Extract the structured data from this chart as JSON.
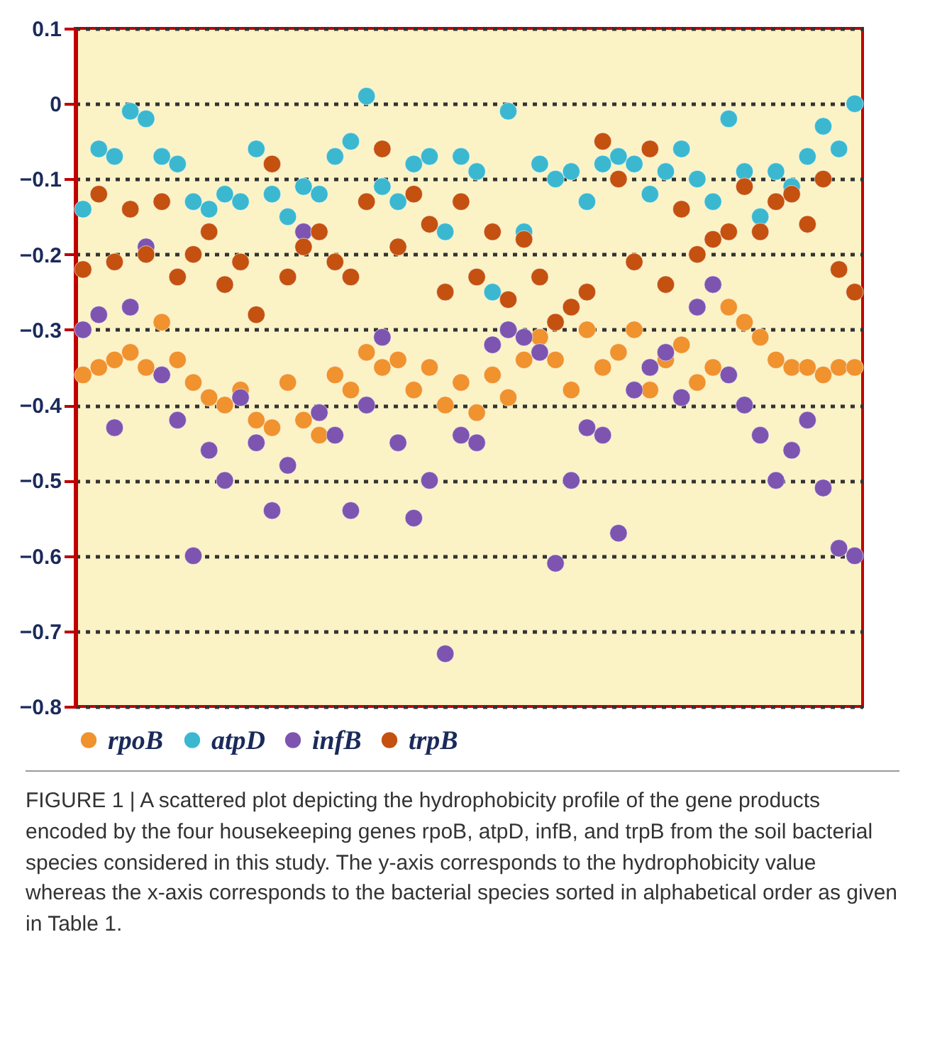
{
  "chart_data": {
    "type": "scatter",
    "categories": [
      null,
      null,
      null,
      null,
      null,
      null,
      null,
      null,
      null,
      null,
      null,
      null,
      null,
      null,
      null,
      null,
      null,
      null,
      null,
      null,
      null,
      null,
      null,
      null,
      null,
      null,
      null,
      null,
      null,
      null,
      null,
      null,
      null,
      null,
      null,
      null,
      null,
      null,
      null,
      null,
      null,
      null,
      null,
      null,
      null,
      null,
      null,
      null,
      null,
      null
    ],
    "series": [
      {
        "name": "rpoB",
        "color": "#f0922e",
        "values": [
          -0.36,
          -0.35,
          -0.34,
          -0.33,
          -0.35,
          -0.29,
          -0.34,
          -0.37,
          -0.39,
          -0.4,
          -0.38,
          -0.42,
          -0.43,
          -0.37,
          -0.42,
          -0.44,
          -0.36,
          -0.38,
          -0.33,
          -0.35,
          -0.34,
          -0.38,
          -0.35,
          -0.4,
          -0.37,
          -0.41,
          -0.36,
          -0.39,
          -0.34,
          -0.31,
          -0.34,
          -0.38,
          -0.3,
          -0.35,
          -0.33,
          -0.3,
          -0.38,
          -0.34,
          -0.32,
          -0.37,
          -0.35,
          -0.27,
          -0.29,
          -0.31,
          -0.34,
          -0.35,
          -0.35,
          -0.36,
          -0.35,
          -0.35
        ]
      },
      {
        "name": "atpD",
        "color": "#3bb8d0",
        "values": [
          -0.14,
          -0.06,
          -0.07,
          -0.01,
          -0.02,
          -0.07,
          -0.08,
          -0.13,
          -0.14,
          -0.12,
          -0.13,
          -0.06,
          -0.12,
          -0.15,
          -0.11,
          -0.12,
          -0.07,
          -0.05,
          0.01,
          -0.11,
          -0.13,
          -0.08,
          -0.07,
          -0.17,
          -0.07,
          -0.09,
          -0.25,
          -0.01,
          -0.17,
          -0.08,
          -0.1,
          -0.09,
          -0.13,
          -0.08,
          -0.07,
          -0.08,
          -0.12,
          -0.09,
          -0.06,
          -0.1,
          -0.13,
          -0.02,
          -0.09,
          -0.15,
          -0.09,
          -0.11,
          -0.07,
          -0.03,
          -0.06,
          0.0
        ]
      },
      {
        "name": "infB",
        "color": "#7d55b0",
        "values": [
          -0.3,
          -0.28,
          -0.43,
          -0.27,
          -0.19,
          -0.36,
          -0.42,
          -0.6,
          -0.46,
          -0.5,
          -0.39,
          -0.45,
          -0.54,
          -0.48,
          -0.17,
          -0.41,
          -0.44,
          -0.54,
          -0.4,
          -0.31,
          -0.45,
          -0.55,
          -0.5,
          -0.73,
          -0.44,
          -0.45,
          -0.32,
          -0.3,
          -0.31,
          -0.33,
          -0.61,
          -0.5,
          -0.43,
          -0.44,
          -0.57,
          -0.38,
          -0.35,
          -0.33,
          -0.39,
          -0.27,
          -0.24,
          -0.36,
          -0.4,
          -0.44,
          -0.5,
          -0.46,
          -0.42,
          -0.51,
          -0.59,
          -0.6
        ]
      },
      {
        "name": "trpB",
        "color": "#c4510f",
        "values": [
          -0.22,
          -0.12,
          -0.21,
          -0.14,
          -0.2,
          -0.13,
          -0.23,
          -0.2,
          -0.17,
          -0.24,
          -0.21,
          -0.28,
          -0.08,
          -0.23,
          -0.19,
          -0.17,
          -0.21,
          -0.23,
          -0.13,
          -0.06,
          -0.19,
          -0.12,
          -0.16,
          -0.25,
          -0.13,
          -0.23,
          -0.17,
          -0.26,
          -0.18,
          -0.23,
          -0.29,
          -0.27,
          -0.25,
          -0.05,
          -0.1,
          -0.21,
          -0.06,
          -0.24,
          -0.14,
          -0.2,
          -0.18,
          -0.17,
          -0.11,
          -0.17,
          -0.13,
          -0.12,
          -0.16,
          -0.1,
          -0.22,
          -0.25
        ]
      }
    ],
    "ylim": [
      -0.8,
      0.1
    ],
    "yticks": [
      0.1,
      {
        "value": 0,
        "label": "0"
      },
      -0.1,
      -0.2,
      -0.3,
      -0.4,
      -0.5,
      -0.6,
      -0.7,
      -0.8
    ],
    "grid": "y",
    "legend": "bottom",
    "marker": "circle",
    "tick_labels": "y",
    "annotations": [
      "FIGURE 1 | A scattered plot depicting the hydrophobicity profile of the gene products encoded by the four housekeeping genes rpoB, atpD, infB, and trpB from the soil bacterial species considered in this study. The y-axis corresponds to the hydrophobicity value whereas the x-axis corresponds to the bacterial species sorted in alphabetical order as given in Table 1."
    ]
  }
}
